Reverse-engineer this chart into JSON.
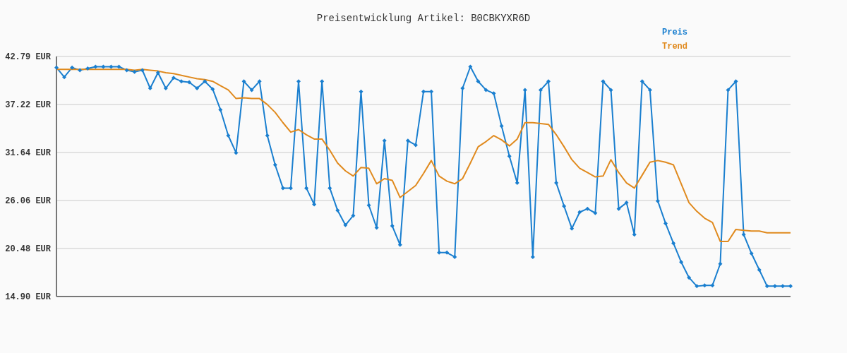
{
  "chart_data": {
    "type": "line",
    "title": "Preisentwicklung Artikel: B0CBKYXR6D",
    "categories": [
      null,
      null,
      null,
      null,
      null,
      null,
      null,
      null,
      null,
      null,
      null,
      null,
      null,
      null,
      null,
      null,
      null,
      null,
      null,
      null,
      null,
      null,
      null,
      null,
      null,
      null,
      null,
      null,
      null,
      null,
      null,
      null,
      null,
      null,
      null,
      null,
      null,
      null,
      null,
      null,
      null,
      null,
      null,
      null,
      null,
      null,
      null,
      null,
      null,
      null,
      null,
      null,
      null,
      null,
      null,
      null,
      null,
      null,
      null,
      null,
      null,
      null,
      null,
      null,
      null,
      null,
      null,
      null,
      null,
      null,
      null,
      null,
      null,
      null,
      null,
      null,
      null,
      null,
      null,
      null,
      null,
      null,
      null,
      null,
      null,
      null,
      null,
      null,
      null,
      null,
      null,
      null,
      null,
      null,
      null
    ],
    "series": [
      {
        "name": "Preis",
        "color": "#1a7fcf",
        "marker": "diamond",
        "values": [
          41.5,
          40.4,
          41.5,
          41.2,
          41.4,
          41.6,
          41.6,
          41.6,
          41.6,
          41.2,
          41.0,
          41.2,
          39.1,
          40.9,
          39.1,
          40.3,
          39.9,
          39.8,
          39.1,
          39.9,
          39.0,
          36.6,
          33.6,
          31.6,
          39.9,
          38.9,
          39.9,
          33.6,
          30.2,
          27.5,
          27.5,
          39.9,
          27.5,
          25.6,
          39.9,
          27.5,
          24.9,
          23.2,
          24.3,
          38.7,
          25.5,
          22.9,
          33.0,
          23.1,
          20.9,
          33.0,
          32.5,
          38.7,
          38.7,
          20.0,
          20.0,
          19.5,
          39.1,
          41.6,
          39.9,
          38.9,
          38.5,
          34.7,
          31.2,
          28.1,
          38.9,
          19.5,
          38.9,
          39.9,
          28.1,
          25.4,
          22.8,
          24.7,
          25.1,
          24.6,
          39.9,
          38.9,
          25.1,
          25.8,
          22.1,
          39.9,
          38.9,
          26.0,
          23.4,
          21.1,
          18.9,
          17.1,
          16.1,
          16.2,
          16.2,
          18.7,
          38.9,
          39.9,
          22.1,
          19.9,
          18.0,
          16.1,
          16.1,
          16.1,
          16.1
        ]
      },
      {
        "name": "Trend",
        "color": "#e08a1e",
        "marker": "none",
        "values": [
          41.3,
          41.3,
          41.3,
          41.3,
          41.3,
          41.3,
          41.3,
          41.3,
          41.3,
          41.3,
          41.2,
          41.3,
          41.2,
          41.1,
          40.9,
          40.8,
          40.6,
          40.4,
          40.2,
          40.1,
          39.9,
          39.4,
          38.9,
          37.9,
          38.0,
          37.9,
          37.9,
          37.2,
          36.3,
          35.1,
          34.0,
          34.3,
          33.7,
          33.2,
          33.2,
          31.9,
          30.4,
          29.5,
          28.9,
          29.9,
          29.8,
          28.0,
          28.6,
          28.4,
          26.4,
          27.1,
          27.8,
          29.2,
          30.7,
          28.9,
          28.3,
          28.0,
          28.6,
          30.4,
          32.3,
          32.9,
          33.6,
          33.1,
          32.4,
          33.2,
          35.1,
          35.1,
          35.0,
          34.9,
          33.7,
          32.3,
          30.8,
          29.8,
          29.3,
          28.8,
          28.9,
          30.8,
          29.3,
          28.1,
          27.5,
          29.0,
          30.5,
          30.7,
          30.5,
          30.2,
          28.0,
          25.8,
          24.8,
          24.0,
          23.5,
          21.3,
          21.3,
          22.7,
          22.6,
          22.5,
          22.5,
          22.3,
          22.3,
          22.3,
          22.3
        ]
      }
    ],
    "ylim": [
      14.9,
      42.79
    ],
    "yticks": [
      {
        "value": 14.9,
        "label": "14.90 EUR"
      },
      {
        "value": 20.48,
        "label": "20.48 EUR"
      },
      {
        "value": 26.06,
        "label": "26.06 EUR"
      },
      {
        "value": 31.64,
        "label": "31.64 EUR"
      },
      {
        "value": 37.22,
        "label": "37.22 EUR"
      },
      {
        "value": 42.79,
        "label": "42.79 EUR"
      }
    ],
    "grid": "y",
    "legend": "top right",
    "tick_labels": "y",
    "line_style": "solid"
  }
}
